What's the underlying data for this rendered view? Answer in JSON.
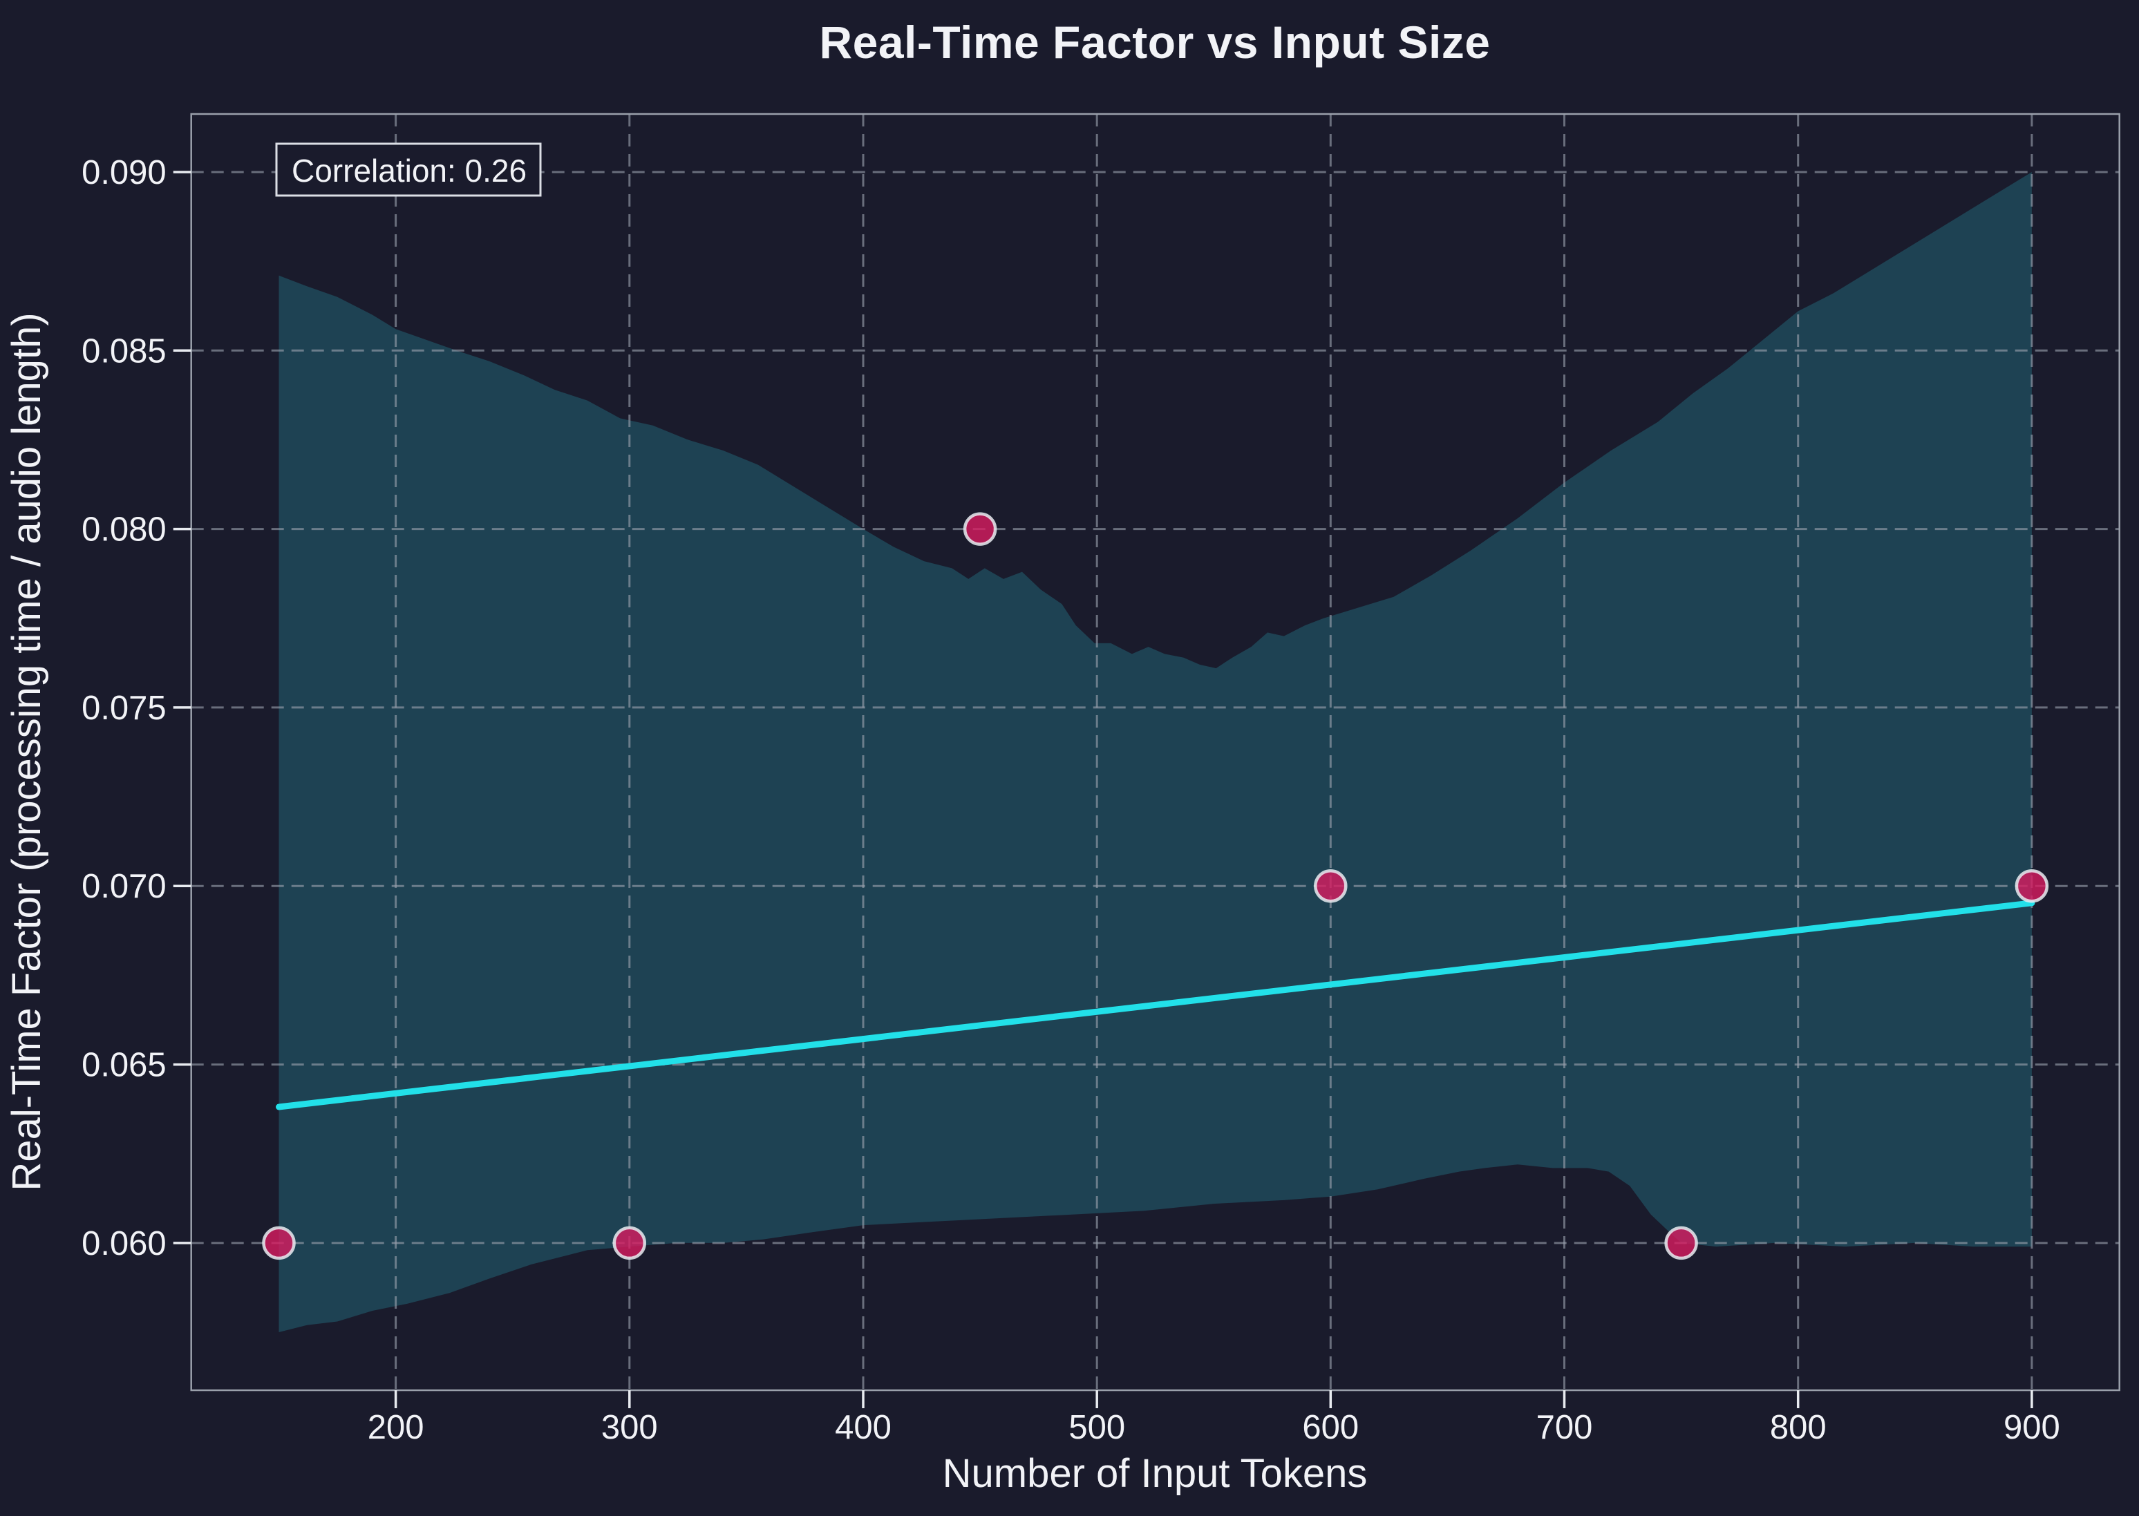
{
  "chart_data": {
    "type": "scatter",
    "title": "Real-Time Factor vs Input Size",
    "xlabel": "Number of Input Tokens",
    "ylabel": "Real-Time Factor (processing time / audio length)",
    "annotation": "Correlation: 0.26",
    "correlation": 0.26,
    "grid": true,
    "legend": "none",
    "xlim": [
      112.5,
      937.5
    ],
    "ylim": [
      0.055875,
      0.091625
    ],
    "xticks": {
      "values": [
        200,
        300,
        400,
        500,
        600,
        700,
        800,
        900
      ],
      "labels": [
        "200",
        "300",
        "400",
        "500",
        "600",
        "700",
        "800",
        "900"
      ]
    },
    "yticks": {
      "values": [
        0.06,
        0.065,
        0.07,
        0.075,
        0.08,
        0.085,
        0.09
      ],
      "labels": [
        "0.060",
        "0.065",
        "0.070",
        "0.075",
        "0.080",
        "0.085",
        "0.090"
      ]
    },
    "points": {
      "x": [
        150,
        300,
        450,
        600,
        750,
        900
      ],
      "y": [
        0.06,
        0.06,
        0.08,
        0.07,
        0.06,
        0.07
      ]
    },
    "trend_line": {
      "x": [
        150,
        900
      ],
      "y": [
        0.06381,
        0.069524
      ],
      "slope_per_token": 7.6e-06,
      "intercept": 0.0626667
    },
    "confidence_band": {
      "upper": [
        [
          150,
          0.0871
        ],
        [
          162,
          0.0868
        ],
        [
          175,
          0.0865
        ],
        [
          190,
          0.086
        ],
        [
          200,
          0.0856
        ],
        [
          213,
          0.0853
        ],
        [
          226,
          0.085
        ],
        [
          240,
          0.0847
        ],
        [
          255,
          0.0843
        ],
        [
          268,
          0.0839
        ],
        [
          282,
          0.0836
        ],
        [
          296,
          0.0831
        ],
        [
          310,
          0.0829
        ],
        [
          325,
          0.0825
        ],
        [
          340,
          0.0822
        ],
        [
          355,
          0.0818
        ],
        [
          370,
          0.0812
        ],
        [
          385,
          0.0806
        ],
        [
          400,
          0.08
        ],
        [
          413,
          0.0795
        ],
        [
          426,
          0.0791
        ],
        [
          438,
          0.0789
        ],
        [
          445,
          0.0786
        ],
        [
          452,
          0.0789
        ],
        [
          460,
          0.0786
        ],
        [
          468,
          0.0788
        ],
        [
          476,
          0.0783
        ],
        [
          485,
          0.0779
        ],
        [
          491,
          0.0773
        ],
        [
          499,
          0.0768
        ],
        [
          506,
          0.0768
        ],
        [
          515,
          0.0765
        ],
        [
          522,
          0.0767
        ],
        [
          529,
          0.0765
        ],
        [
          537,
          0.0764
        ],
        [
          544,
          0.0762
        ],
        [
          551,
          0.0761
        ],
        [
          558,
          0.0764
        ],
        [
          566,
          0.0767
        ],
        [
          573,
          0.0771
        ],
        [
          580,
          0.077
        ],
        [
          589,
          0.0773
        ],
        [
          597,
          0.0775
        ],
        [
          612,
          0.0778
        ],
        [
          627,
          0.0781
        ],
        [
          643,
          0.0787
        ],
        [
          660,
          0.0794
        ],
        [
          680,
          0.0803
        ],
        [
          700,
          0.0813
        ],
        [
          720,
          0.0822
        ],
        [
          740,
          0.083
        ],
        [
          755,
          0.0838
        ],
        [
          770,
          0.0845
        ],
        [
          785,
          0.0853
        ],
        [
          800,
          0.0861
        ],
        [
          815,
          0.0866
        ],
        [
          830,
          0.0872
        ],
        [
          845,
          0.0878
        ],
        [
          860,
          0.0884
        ],
        [
          880,
          0.0892
        ],
        [
          900,
          0.09
        ]
      ],
      "lower": [
        [
          150,
          0.0575
        ],
        [
          162,
          0.0577
        ],
        [
          175,
          0.0578
        ],
        [
          190,
          0.0581
        ],
        [
          205,
          0.0583
        ],
        [
          223,
          0.0586
        ],
        [
          240,
          0.059
        ],
        [
          258,
          0.0594
        ],
        [
          270,
          0.0596
        ],
        [
          282,
          0.0598
        ],
        [
          300,
          0.0599
        ],
        [
          320,
          0.06
        ],
        [
          340,
          0.06
        ],
        [
          357,
          0.0601
        ],
        [
          378,
          0.0603
        ],
        [
          400,
          0.0605
        ],
        [
          430,
          0.0606
        ],
        [
          460,
          0.0607
        ],
        [
          490,
          0.0608
        ],
        [
          520,
          0.0609
        ],
        [
          550,
          0.0611
        ],
        [
          580,
          0.0612
        ],
        [
          600,
          0.0613
        ],
        [
          620,
          0.0615
        ],
        [
          640,
          0.0618
        ],
        [
          655,
          0.062
        ],
        [
          666,
          0.0621
        ],
        [
          680,
          0.0622
        ],
        [
          695,
          0.0621
        ],
        [
          710,
          0.0621
        ],
        [
          719,
          0.062
        ],
        [
          728,
          0.0616
        ],
        [
          737,
          0.0608
        ],
        [
          745,
          0.0603
        ],
        [
          750,
          0.06
        ],
        [
          765,
          0.0599
        ],
        [
          790,
          0.06
        ],
        [
          820,
          0.0599
        ],
        [
          850,
          0.06
        ],
        [
          875,
          0.0599
        ],
        [
          900,
          0.0599
        ]
      ]
    },
    "colors": {
      "background": "#1a1b2c",
      "band_fill": "#1e4253",
      "trend_line": "#22e0e9",
      "point_fill": "rgba(216,27,96,0.8)",
      "point_edge": "rgba(232,236,241,0.85)",
      "grid": "#9aa1ae",
      "spine": "#9aa0ab",
      "tick_mark": "#e8ebf0",
      "text": "#f2f3f7",
      "annotation_border": "#dcdfe6"
    }
  }
}
